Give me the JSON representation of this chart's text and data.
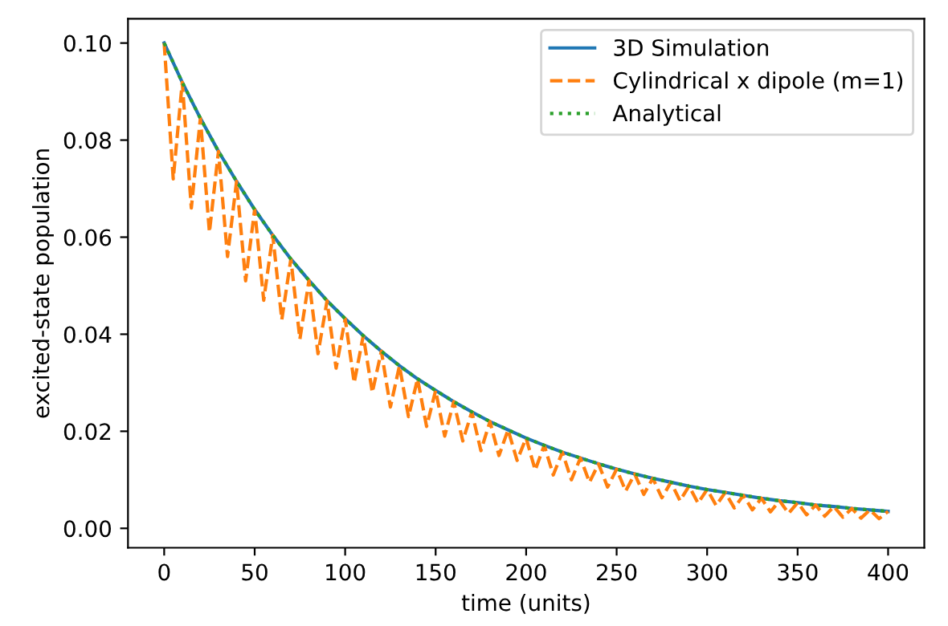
{
  "chart_data": {
    "type": "line",
    "xlabel": "time (units)",
    "ylabel": "excited-state population",
    "xlim": [
      -20,
      420
    ],
    "ylim": [
      -0.004,
      0.105
    ],
    "xticks": [
      0,
      50,
      100,
      150,
      200,
      250,
      300,
      350,
      400
    ],
    "yticks": [
      {
        "value": 0,
        "label": "0.00"
      },
      {
        "value": 0.02,
        "label": "0.02"
      },
      {
        "value": 0.04,
        "label": "0.04"
      },
      {
        "value": 0.06,
        "label": "0.06"
      },
      {
        "value": 0.08,
        "label": "0.08"
      },
      {
        "value": 0.1,
        "label": "0.10"
      }
    ],
    "legend": "top right",
    "grid": false,
    "series": [
      {
        "name": "3D Simulation",
        "color": "#1f77b4",
        "line_style": "solid",
        "x": [
          0,
          10,
          20,
          30,
          40,
          50,
          60,
          70,
          80,
          90,
          100,
          110,
          120,
          130,
          140,
          150,
          160,
          170,
          180,
          190,
          200,
          210,
          220,
          230,
          240,
          250,
          260,
          270,
          280,
          290,
          300,
          310,
          320,
          330,
          340,
          350,
          360,
          370,
          380,
          390,
          400
        ],
        "values": [
          0.1,
          0.0919,
          0.0845,
          0.0777,
          0.0715,
          0.0657,
          0.0604,
          0.0555,
          0.0511,
          0.0469,
          0.0432,
          0.0397,
          0.0365,
          0.0335,
          0.0308,
          0.0284,
          0.0261,
          0.024,
          0.022,
          0.0203,
          0.0186,
          0.0171,
          0.0157,
          0.0145,
          0.0133,
          0.0122,
          0.0112,
          0.0103,
          0.0095,
          0.0087,
          0.008,
          0.0074,
          0.0068,
          0.0062,
          0.0057,
          0.0053,
          0.0048,
          0.0045,
          0.0041,
          0.0038,
          0.0035
        ]
      },
      {
        "name": "Cylindrical x dipole (m=1)",
        "color": "#ff7f0e",
        "line_style": "dashed",
        "x": [
          0,
          5,
          10,
          15,
          20,
          25,
          30,
          35,
          40,
          45,
          50,
          55,
          60,
          65,
          70,
          75,
          80,
          85,
          90,
          95,
          100,
          105,
          110,
          115,
          120,
          125,
          130,
          135,
          140,
          145,
          150,
          155,
          160,
          165,
          170,
          175,
          180,
          185,
          190,
          195,
          200,
          205,
          210,
          215,
          220,
          225,
          230,
          235,
          240,
          245,
          250,
          255,
          260,
          265,
          270,
          275,
          280,
          285,
          290,
          295,
          300,
          305,
          310,
          315,
          320,
          325,
          330,
          335,
          340,
          345,
          350,
          355,
          360,
          365,
          370,
          375,
          380,
          385,
          390,
          395,
          400
        ],
        "values": [
          0.1,
          0.072,
          0.0919,
          0.066,
          0.0845,
          0.061,
          0.0777,
          0.056,
          0.0715,
          0.051,
          0.0657,
          0.047,
          0.0604,
          0.043,
          0.0555,
          0.039,
          0.0511,
          0.036,
          0.0469,
          0.033,
          0.0432,
          0.03,
          0.0397,
          0.028,
          0.0365,
          0.025,
          0.0335,
          0.023,
          0.0308,
          0.021,
          0.0284,
          0.019,
          0.0261,
          0.018,
          0.024,
          0.016,
          0.022,
          0.015,
          0.0203,
          0.014,
          0.0186,
          0.012,
          0.0171,
          0.011,
          0.0157,
          0.01,
          0.0145,
          0.0095,
          0.0133,
          0.0085,
          0.0122,
          0.0077,
          0.0112,
          0.007,
          0.0103,
          0.0063,
          0.0095,
          0.0057,
          0.0087,
          0.0052,
          0.008,
          0.0047,
          0.0074,
          0.0042,
          0.0068,
          0.0038,
          0.0062,
          0.0034,
          0.0057,
          0.0031,
          0.0053,
          0.0028,
          0.0048,
          0.0025,
          0.0045,
          0.0023,
          0.0041,
          0.0021,
          0.0038,
          0.002,
          0.0035
        ]
      },
      {
        "name": "Analytical",
        "color": "#2ca02c",
        "line_style": "dotted",
        "x": [
          0,
          10,
          20,
          30,
          40,
          50,
          60,
          70,
          80,
          90,
          100,
          110,
          120,
          130,
          140,
          150,
          160,
          170,
          180,
          190,
          200,
          210,
          220,
          230,
          240,
          250,
          260,
          270,
          280,
          290,
          300,
          310,
          320,
          330,
          340,
          350,
          360,
          370,
          380,
          390,
          400
        ],
        "values": [
          0.1,
          0.0919,
          0.0845,
          0.0777,
          0.0715,
          0.0657,
          0.0604,
          0.0555,
          0.0511,
          0.0469,
          0.0432,
          0.0397,
          0.0365,
          0.0335,
          0.0308,
          0.0284,
          0.0261,
          0.024,
          0.022,
          0.0203,
          0.0186,
          0.0171,
          0.0157,
          0.0145,
          0.0133,
          0.0122,
          0.0112,
          0.0103,
          0.0095,
          0.0087,
          0.008,
          0.0074,
          0.0068,
          0.0062,
          0.0057,
          0.0053,
          0.0048,
          0.0045,
          0.0041,
          0.0038,
          0.0035
        ]
      }
    ]
  }
}
